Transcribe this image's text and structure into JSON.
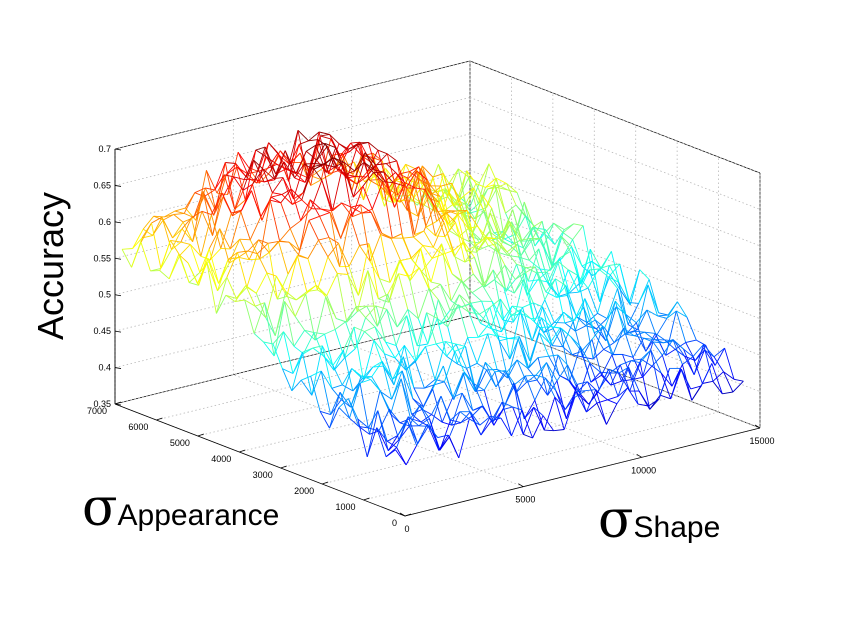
{
  "chart_data": {
    "type": "surface",
    "title": "",
    "zlabel": "Accuracy",
    "xlabel_symbol": "σ",
    "xlabel_subscript": "Appearance",
    "ylabel_symbol": "σ",
    "ylabel_subscript": "Shape",
    "zlim": [
      0.35,
      0.7
    ],
    "z_ticks": [
      "0.35",
      "0.4",
      "0.45",
      "0.5",
      "0.55",
      "0.6",
      "0.65",
      "0.7"
    ],
    "appearance_lim": [
      0,
      7000
    ],
    "appearance_ticks": [
      "0",
      "1000",
      "2000",
      "3000",
      "4000",
      "5000",
      "6000",
      "7000"
    ],
    "shape_lim": [
      0,
      15000
    ],
    "shape_ticks": [
      "0",
      "5000",
      "10000",
      "15000"
    ],
    "grid": true,
    "colormap": "jet",
    "surface_summary": {
      "peak_accuracy": 0.69,
      "peak_region": {
        "appearance": [
          4000,
          7000
        ],
        "shape": [
          3000,
          9000
        ]
      },
      "low_accuracy": 0.37,
      "low_region": {
        "appearance": [
          0,
          2500
        ],
        "shape": [
          0,
          15000
        ]
      }
    }
  }
}
